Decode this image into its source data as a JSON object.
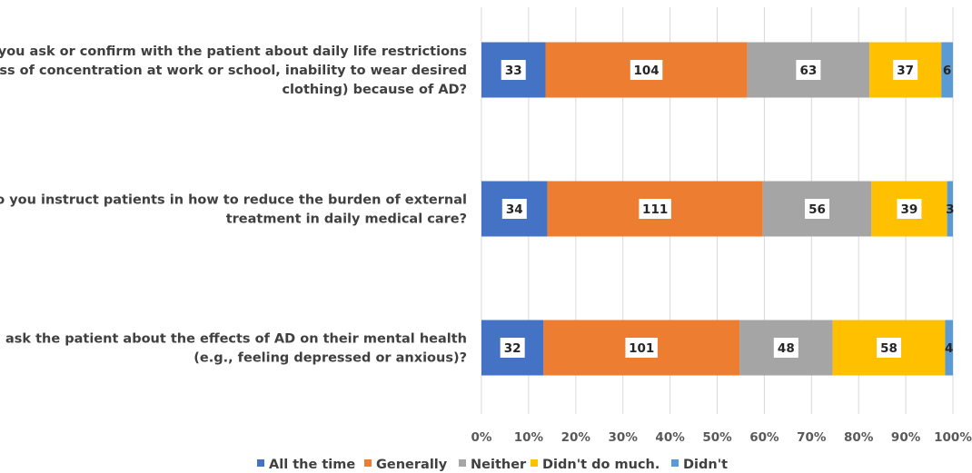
{
  "chart_data": {
    "type": "bar",
    "orientation": "horizontal",
    "stacked": "percent",
    "categories": [
      [
        "Do you ask or confirm with the patient about daily life restrictions",
        "(loss of concentration at work or school, inability to wear desired",
        "clothing) because of AD?"
      ],
      [
        "Do you instruct patients in how to reduce the burden of external",
        "treatment in daily medical care?"
      ],
      [
        "Do you ask the patient about the effects of AD on their mental health",
        "(e.g., feeling depressed or anxious)?"
      ]
    ],
    "series": [
      {
        "name": "All the time",
        "color": "#4472C4",
        "values": [
          33,
          34,
          32
        ]
      },
      {
        "name": "Generally",
        "color": "#ED7D31",
        "values": [
          104,
          111,
          101
        ]
      },
      {
        "name": "Neither",
        "color": "#A5A5A5",
        "values": [
          63,
          56,
          48
        ]
      },
      {
        "name": "Didn't do much.",
        "color": "#FFC000",
        "values": [
          37,
          39,
          58
        ]
      },
      {
        "name": "Didn't",
        "color": "#5B9BD5",
        "values": [
          6,
          3,
          4
        ]
      }
    ],
    "xlim": [
      0,
      100
    ],
    "xticks": [
      "0%",
      "10%",
      "20%",
      "30%",
      "40%",
      "50%",
      "60%",
      "70%",
      "80%",
      "90%",
      "100%"
    ],
    "grid": true,
    "legend": "bottom"
  }
}
